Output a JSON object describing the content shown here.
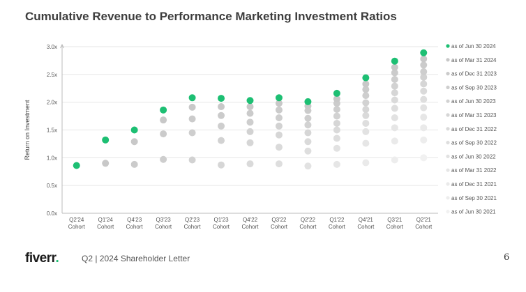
{
  "chart_data": {
    "type": "scatter",
    "title": "Cumulative Revenue to Performance Marketing Investment Ratios",
    "ylabel": "Return on Investment",
    "xlabel": "",
    "ylim": [
      0,
      3.0
    ],
    "yticks": [
      "0.0x",
      "0.5x",
      "1.0x",
      "1.5x",
      "2.0x",
      "2.5x",
      "3.0x"
    ],
    "categories": [
      "Q2'24 Cohort",
      "Q1'24 Cohort",
      "Q4'23 Cohort",
      "Q3'23 Cohort",
      "Q2'23 Cohort",
      "Q1'23 Cohort",
      "Q4'22 Cohort",
      "Q3'22 Cohort",
      "Q2'22 Cohort",
      "Q1'22 Cohort",
      "Q4'21 Cohort",
      "Q3'21 Cohort",
      "Q2'21 Cohort"
    ],
    "legend_position": "right",
    "series": [
      {
        "name": "as of Jun 30 2024",
        "color": "#1dbf73",
        "values": [
          0.86,
          1.32,
          1.5,
          1.86,
          2.08,
          2.07,
          2.03,
          2.08,
          2.01,
          2.16,
          2.44,
          2.74,
          2.89
        ]
      },
      {
        "name": "as of Mar 31 2024",
        "color": "#c8c8c8",
        "values": [
          null,
          0.9,
          1.29,
          1.68,
          1.91,
          1.92,
          1.92,
          1.98,
          1.93,
          2.06,
          2.33,
          2.63,
          2.78
        ]
      },
      {
        "name": "as of Dec 31 2023",
        "color": "#cbcbcb",
        "values": [
          null,
          null,
          0.88,
          1.43,
          1.7,
          1.76,
          1.8,
          1.86,
          1.85,
          1.98,
          2.23,
          2.53,
          2.67
        ]
      },
      {
        "name": "as of Sep 30 2023",
        "color": "#cecece",
        "values": [
          null,
          null,
          null,
          0.97,
          1.45,
          1.57,
          1.64,
          1.72,
          1.71,
          1.87,
          2.12,
          2.41,
          2.55
        ]
      },
      {
        "name": "as of Jun 30 2023",
        "color": "#d2d2d2",
        "values": [
          null,
          null,
          null,
          null,
          0.96,
          1.31,
          1.47,
          1.57,
          1.59,
          1.75,
          1.99,
          2.29,
          2.45
        ]
      },
      {
        "name": "as of Mar 31 2023",
        "color": "#d6d6d6",
        "values": [
          null,
          null,
          null,
          null,
          null,
          0.87,
          1.27,
          1.41,
          1.45,
          1.62,
          1.87,
          2.17,
          2.33
        ]
      },
      {
        "name": "as of Dec 31 2022",
        "color": "#dadada",
        "values": [
          null,
          null,
          null,
          null,
          null,
          null,
          0.89,
          1.19,
          1.29,
          1.5,
          1.76,
          2.04,
          2.2
        ]
      },
      {
        "name": "as of Sep 30 2022",
        "color": "#dedede",
        "values": [
          null,
          null,
          null,
          null,
          null,
          null,
          null,
          0.89,
          1.12,
          1.35,
          1.62,
          1.89,
          2.05
        ]
      },
      {
        "name": "as of Jun 30 2022",
        "color": "#e2e2e2",
        "values": [
          null,
          null,
          null,
          null,
          null,
          null,
          null,
          null,
          0.85,
          1.17,
          1.47,
          1.72,
          1.9
        ]
      },
      {
        "name": "as of Mar 31 2022",
        "color": "#e6e6e6",
        "values": [
          null,
          null,
          null,
          null,
          null,
          null,
          null,
          null,
          null,
          0.88,
          1.26,
          1.54,
          1.73
        ]
      },
      {
        "name": "as of Dec 31 2021",
        "color": "#eaeaea",
        "values": [
          null,
          null,
          null,
          null,
          null,
          null,
          null,
          null,
          null,
          null,
          0.91,
          1.3,
          1.54
        ]
      },
      {
        "name": "as of Sep 30 2021",
        "color": "#ededed",
        "values": [
          null,
          null,
          null,
          null,
          null,
          null,
          null,
          null,
          null,
          null,
          null,
          0.96,
          1.32
        ]
      },
      {
        "name": "as of Jun 30 2021",
        "color": "#f1f1f1",
        "values": [
          null,
          null,
          null,
          null,
          null,
          null,
          null,
          null,
          null,
          null,
          null,
          null,
          1.0
        ]
      }
    ]
  },
  "footer": {
    "logo_text": "fiverr",
    "logo_dot": ".",
    "text": "Q2 | 2024 Shareholder Letter",
    "page_number": "6"
  }
}
